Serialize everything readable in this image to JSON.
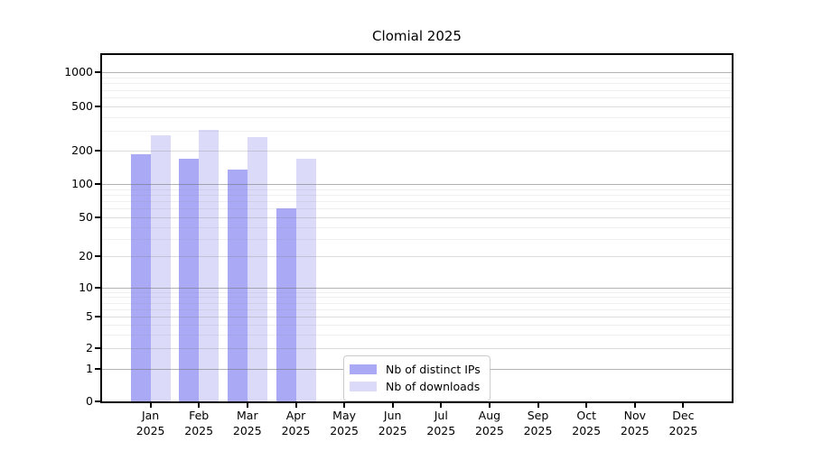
{
  "chart_data": {
    "type": "bar",
    "title": "Clomial 2025",
    "xlabel": "",
    "ylabel": "",
    "y_scale": "log",
    "y_ticks": [
      0,
      1,
      2,
      5,
      10,
      20,
      50,
      100,
      200,
      500,
      1000
    ],
    "grid": "on",
    "legend_position": "lower center inside plot",
    "categories": [
      {
        "month": "Jan",
        "year": "2025"
      },
      {
        "month": "Feb",
        "year": "2025"
      },
      {
        "month": "Mar",
        "year": "2025"
      },
      {
        "month": "Apr",
        "year": "2025"
      },
      {
        "month": "May",
        "year": "2025"
      },
      {
        "month": "Jun",
        "year": "2025"
      },
      {
        "month": "Jul",
        "year": "2025"
      },
      {
        "month": "Aug",
        "year": "2025"
      },
      {
        "month": "Sep",
        "year": "2025"
      },
      {
        "month": "Oct",
        "year": "2025"
      },
      {
        "month": "Nov",
        "year": "2025"
      },
      {
        "month": "Dec",
        "year": "2025"
      }
    ],
    "series": [
      {
        "name": "Nb of distinct IPs",
        "color": "#a9a9f6",
        "values": [
          185,
          170,
          135,
          60,
          null,
          null,
          null,
          null,
          null,
          null,
          null,
          null
        ]
      },
      {
        "name": "Nb of downloads",
        "color": "#dbdbf9",
        "values": [
          275,
          310,
          265,
          170,
          null,
          null,
          null,
          null,
          null,
          null,
          null,
          null
        ]
      }
    ]
  }
}
